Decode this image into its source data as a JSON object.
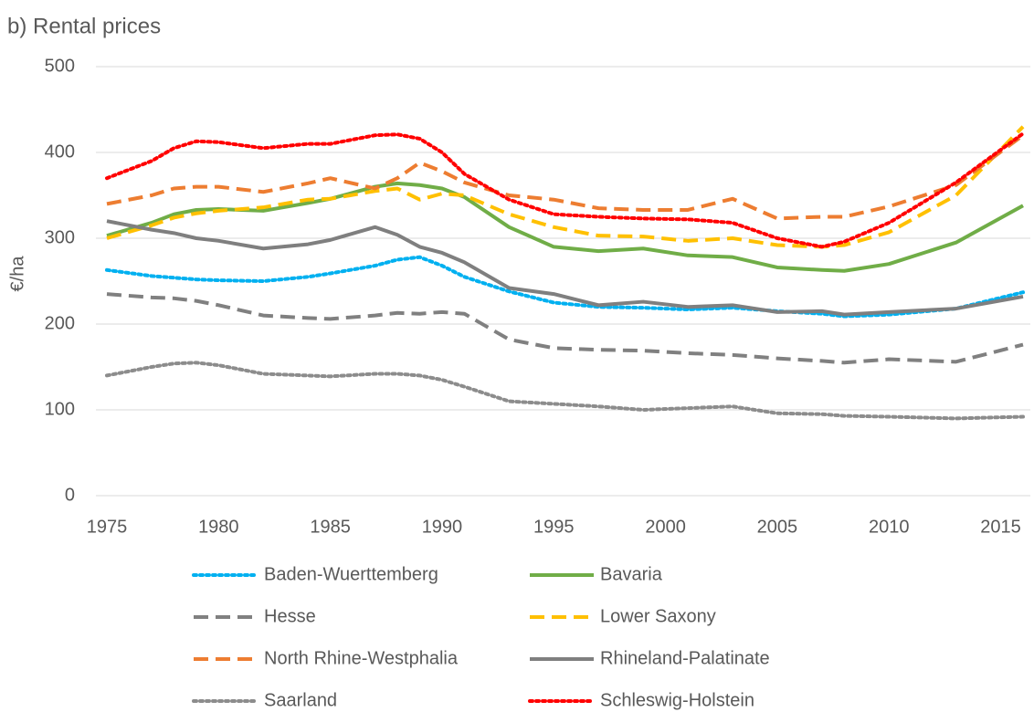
{
  "chart_data": {
    "type": "line",
    "title": "b) Rental prices",
    "y_label": "€/ha",
    "x": [
      1975,
      1977,
      1978,
      1979,
      1980,
      1982,
      1984,
      1985,
      1987,
      1988,
      1989,
      1990,
      1991,
      1993,
      1995,
      1997,
      1999,
      2001,
      2003,
      2005,
      2007,
      2008,
      2010,
      2013,
      2016
    ],
    "xlim": [
      1975,
      2016
    ],
    "xticks": [
      1975,
      1980,
      1985,
      1990,
      1995,
      2000,
      2005,
      2010,
      2015
    ],
    "ylim": [
      0,
      500
    ],
    "yticks": [
      0,
      100,
      200,
      300,
      400,
      500
    ],
    "grid": true,
    "legend": "bottom",
    "series": [
      {
        "name": "Baden-Wuerttemberg",
        "color": "#00b0f0",
        "dash": "dotted",
        "values": [
          263,
          256,
          254,
          252,
          251,
          250,
          255,
          259,
          268,
          275,
          278,
          268,
          255,
          238,
          225,
          220,
          219,
          217,
          219,
          215,
          212,
          209,
          211,
          218,
          237
        ]
      },
      {
        "name": "Bavaria",
        "color": "#70ad47",
        "dash": "solid",
        "values": [
          303,
          318,
          328,
          333,
          334,
          332,
          341,
          346,
          360,
          364,
          362,
          358,
          348,
          313,
          290,
          285,
          288,
          280,
          278,
          266,
          263,
          262,
          270,
          295,
          338
        ]
      },
      {
        "name": "Hesse",
        "color": "#808080",
        "dash": "dashed",
        "values": [
          235,
          231,
          230,
          227,
          222,
          210,
          207,
          206,
          210,
          213,
          212,
          214,
          212,
          182,
          172,
          170,
          169,
          166,
          164,
          160,
          157,
          155,
          159,
          156,
          176
        ]
      },
      {
        "name": "Lower Saxony",
        "color": "#ffc000",
        "dash": "dashed",
        "values": [
          300,
          315,
          324,
          329,
          332,
          336,
          345,
          346,
          355,
          358,
          345,
          352,
          350,
          328,
          313,
          303,
          302,
          297,
          300,
          292,
          290,
          292,
          307,
          350,
          430
        ]
      },
      {
        "name": "North Rhine-Westphalia",
        "color": "#ed7d31",
        "dash": "dashed",
        "values": [
          340,
          350,
          358,
          360,
          360,
          354,
          364,
          370,
          358,
          370,
          388,
          378,
          365,
          350,
          345,
          335,
          333,
          333,
          346,
          323,
          325,
          325,
          337,
          362,
          420
        ]
      },
      {
        "name": "Rhineland-Palatinate",
        "color": "#7f7f7f",
        "dash": "solid",
        "values": [
          320,
          310,
          306,
          300,
          297,
          288,
          293,
          298,
          313,
          304,
          290,
          283,
          272,
          242,
          235,
          222,
          226,
          220,
          222,
          214,
          215,
          211,
          214,
          218,
          232
        ]
      },
      {
        "name": "Saarland",
        "color": "#8c8c8c",
        "dash": "dotted",
        "values": [
          140,
          150,
          154,
          155,
          152,
          142,
          140,
          139,
          142,
          142,
          140,
          135,
          127,
          110,
          107,
          104,
          100,
          102,
          104,
          96,
          95,
          93,
          92,
          90,
          92
        ]
      },
      {
        "name": "Schleswig-Holstein",
        "color": "#ff0000",
        "dash": "dotted",
        "values": [
          370,
          390,
          405,
          413,
          412,
          405,
          410,
          410,
          420,
          421,
          416,
          400,
          375,
          345,
          328,
          325,
          323,
          322,
          318,
          300,
          290,
          296,
          318,
          365,
          422
        ]
      }
    ]
  }
}
